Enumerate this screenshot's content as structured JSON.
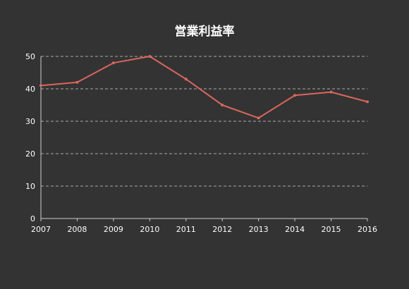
{
  "chart_data": {
    "type": "line",
    "title": "営業利益率",
    "xlabel": "",
    "ylabel": "",
    "x": [
      "2007",
      "2008",
      "2009",
      "2010",
      "2011",
      "2012",
      "2013",
      "2014",
      "2015",
      "2016"
    ],
    "series": [
      {
        "values": [
          41,
          42,
          48,
          50,
          43,
          35,
          31,
          38,
          39,
          36
        ]
      }
    ],
    "ylim": [
      0,
      50
    ],
    "yticks": [
      0,
      10,
      20,
      30,
      40,
      50
    ],
    "grid": true,
    "colors": {
      "background": "#333333",
      "line": "#d9665e",
      "text": "#ffffff",
      "grid": "#aaaaaa",
      "axis": "#cccccc"
    }
  }
}
